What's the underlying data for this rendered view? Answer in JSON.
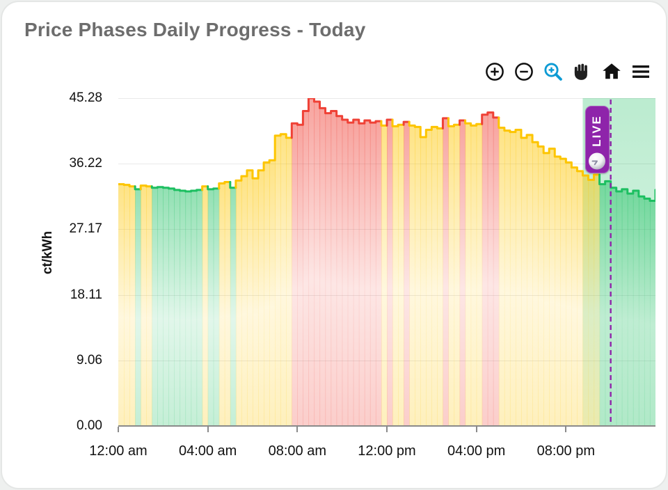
{
  "card": {
    "title": "Price Phases Daily Progress - Today"
  },
  "toolbar": {
    "buttons": [
      {
        "name": "zoom-in"
      },
      {
        "name": "zoom-out"
      },
      {
        "name": "box-zoom",
        "active": true,
        "active_color": "#0d9bd4"
      },
      {
        "name": "pan-hand"
      },
      {
        "name": "reset-home"
      },
      {
        "name": "menu"
      }
    ]
  },
  "live_badge": {
    "label": "LIVE",
    "color": "#8e24aa"
  },
  "chart_data": {
    "type": "area",
    "subtype": "step-line-phase-colored",
    "title": "Price Phases Daily Progress - Today",
    "xlabel": "",
    "ylabel": "ct/kWh",
    "ylim": [
      0,
      45.28
    ],
    "xlim_hours": [
      0,
      24
    ],
    "grid": true,
    "y_ticks": [
      "45.28",
      "36.22",
      "27.17",
      "18.11",
      "9.06",
      "0.00"
    ],
    "y_tick_values": [
      45.28,
      36.22,
      27.17,
      18.11,
      9.06,
      0
    ],
    "x_ticks": [
      "12:00 am",
      "04:00 am",
      "08:00 am",
      "12:00 pm",
      "04:00 pm",
      "08:00 pm"
    ],
    "x_tick_hours": [
      0,
      4,
      8,
      12,
      16,
      20
    ],
    "step_minutes": 15,
    "phase_colors": {
      "g": "#1dbf61",
      "y": "#fdc500",
      "r": "#ef4136"
    },
    "series": [
      {
        "name": "price-phases",
        "unit": "ct/kWh",
        "start_hour": 0,
        "values": [
          33.4,
          33.3,
          33.1,
          32.7,
          33.2,
          33.1,
          32.9,
          33.0,
          32.9,
          32.8,
          32.6,
          32.5,
          32.4,
          32.5,
          32.6,
          33.1,
          32.7,
          32.8,
          33.5,
          33.7,
          32.9,
          33.9,
          34.5,
          35.3,
          34.2,
          35.3,
          36.4,
          36.7,
          40.1,
          40.3,
          39.8,
          41.8,
          41.6,
          43.5,
          45.28,
          44.8,
          43.9,
          43.2,
          43.5,
          42.8,
          42.3,
          41.9,
          42.3,
          41.8,
          42.2,
          41.9,
          42.1,
          41.5,
          42.3,
          41.4,
          41.6,
          42.0,
          41.5,
          41.3,
          39.9,
          40.9,
          41.3,
          41.1,
          42.5,
          41.4,
          41.6,
          42.2,
          41.8,
          41.5,
          41.7,
          43.0,
          43.3,
          42.6,
          41.2,
          40.8,
          40.6,
          40.9,
          39.8,
          40.2,
          39.2,
          38.6,
          37.7,
          38.3,
          37.2,
          36.9,
          36.4,
          35.7,
          35.2,
          34.6,
          34.0,
          34.7,
          33.4,
          33.8,
          32.9,
          32.4,
          32.7,
          32.1,
          32.5,
          31.7,
          31.4,
          31.1,
          32.6
        ],
        "phases": [
          "y",
          "y",
          "y",
          "g",
          "y",
          "y",
          "g",
          "g",
          "g",
          "g",
          "g",
          "g",
          "g",
          "g",
          "g",
          "y",
          "g",
          "g",
          "y",
          "y",
          "g",
          "y",
          "y",
          "y",
          "y",
          "y",
          "y",
          "y",
          "y",
          "y",
          "y",
          "r",
          "r",
          "r",
          "r",
          "r",
          "r",
          "r",
          "r",
          "r",
          "r",
          "r",
          "r",
          "r",
          "r",
          "r",
          "r",
          "y",
          "r",
          "y",
          "y",
          "r",
          "y",
          "y",
          "y",
          "y",
          "y",
          "y",
          "r",
          "y",
          "y",
          "r",
          "y",
          "y",
          "y",
          "r",
          "r",
          "r",
          "y",
          "y",
          "y",
          "y",
          "y",
          "y",
          "y",
          "y",
          "y",
          "y",
          "y",
          "y",
          "y",
          "y",
          "y",
          "y",
          "y",
          "y",
          "g",
          "g",
          "g",
          "g",
          "g",
          "g",
          "g",
          "g",
          "g",
          "g",
          "g"
        ]
      }
    ],
    "future_region": {
      "start_hour": 20.75,
      "end_hour": 24,
      "color": "#1dbf61"
    },
    "now_line": {
      "hour": 22.0,
      "color": "#8e24aa",
      "style": "dashed"
    }
  }
}
